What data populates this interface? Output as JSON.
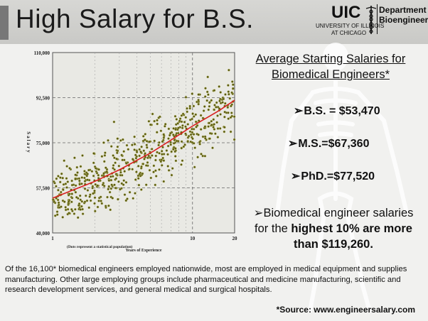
{
  "slide": {
    "title": "High Salary for B.S.",
    "logo": {
      "letters": "UIC",
      "university_line1": "UNIVERSITY OF ILLINOIS",
      "university_line2": "AT CHICAGO",
      "department_line1": "Department of",
      "department_line2": "Bioengineering"
    },
    "heading_line1": "Average Starting Salaries for",
    "heading_line2": "Biomedical Engineers*",
    "stats": [
      {
        "text": "B.S. = $53,470"
      },
      {
        "text": "M.S.=$67,360"
      },
      {
        "text": "PhD.=$77,520"
      }
    ],
    "arrow_glyph": "➢",
    "range_part1": "Biomedical engineer salaries for the ",
    "range_bold": "highest 10% are more than $119,260.",
    "footnote": "Of the 16,100* biomedical engineers employed nationwide, most are employed in medical equipment and supplies manufacturing. Other large employing groups include pharmaceutical and medicine manufacturing, scientific and research development services, and general medical and surgical hospitals.",
    "source": "*Source: www.engineersalary.com"
  },
  "chart_data": {
    "type": "scatter",
    "title": "",
    "xlabel": "Years of Experience",
    "ylabel": "Salary",
    "note": "(Dots represent a statistical population)",
    "x_scale": "log",
    "xlim": [
      1,
      20
    ],
    "ylim": [
      40000,
      110000
    ],
    "x_ticks": [
      1,
      10,
      20
    ],
    "x_tick_labels": [
      "1",
      "10",
      "20"
    ],
    "y_ticks": [
      40000,
      57500,
      75000,
      92500,
      110000
    ],
    "y_tick_labels": [
      "40,000",
      "57,500",
      "75,000",
      "92,500",
      "110,000"
    ],
    "grid": "dashed",
    "points_description_count": 600,
    "trend_line": {
      "color": "#d81f1f",
      "points": [
        [
          1,
          53500
        ],
        [
          2,
          60000
        ],
        [
          3,
          64500
        ],
        [
          5,
          71000
        ],
        [
          7,
          76000
        ],
        [
          10,
          81500
        ],
        [
          15,
          87000
        ],
        [
          20,
          91500
        ]
      ]
    },
    "point_color": "#5a5a12",
    "point_edge": "#cfcf80",
    "scatter_seed": 7,
    "scatter_spread": 8500
  }
}
